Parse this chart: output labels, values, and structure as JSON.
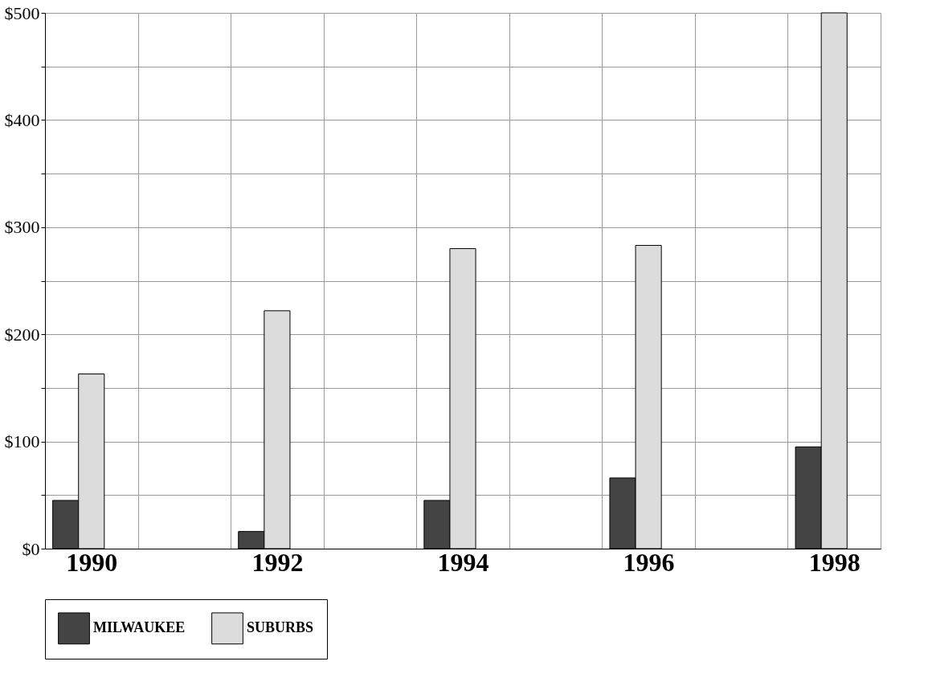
{
  "chart_data": {
    "type": "bar",
    "categories": [
      "1990",
      null,
      "1992",
      null,
      "1994",
      null,
      "1996",
      null,
      "1998"
    ],
    "series": [
      {
        "name": "MILWAUKEE",
        "color": "#444444",
        "values": [
          45,
          null,
          16,
          null,
          45,
          null,
          66,
          null,
          95
        ]
      },
      {
        "name": "SUBURBS",
        "color": "#dcdcdc",
        "values": [
          163,
          null,
          222,
          null,
          280,
          null,
          283,
          null,
          500
        ]
      }
    ],
    "ylim": [
      0,
      500
    ],
    "yticks": [
      {
        "value": 0,
        "label": "$0"
      },
      {
        "value": 50,
        "label": null
      },
      {
        "value": 100,
        "label": "$100"
      },
      {
        "value": 150,
        "label": null
      },
      {
        "value": 200,
        "label": "$200"
      },
      {
        "value": 250,
        "label": null
      },
      {
        "value": 300,
        "label": "$300"
      },
      {
        "value": 350,
        "label": null
      },
      {
        "value": 400,
        "label": "$400"
      },
      {
        "value": 450,
        "label": null
      },
      {
        "value": 500,
        "label": "$500"
      }
    ],
    "grid": true,
    "legend": "bottom"
  }
}
